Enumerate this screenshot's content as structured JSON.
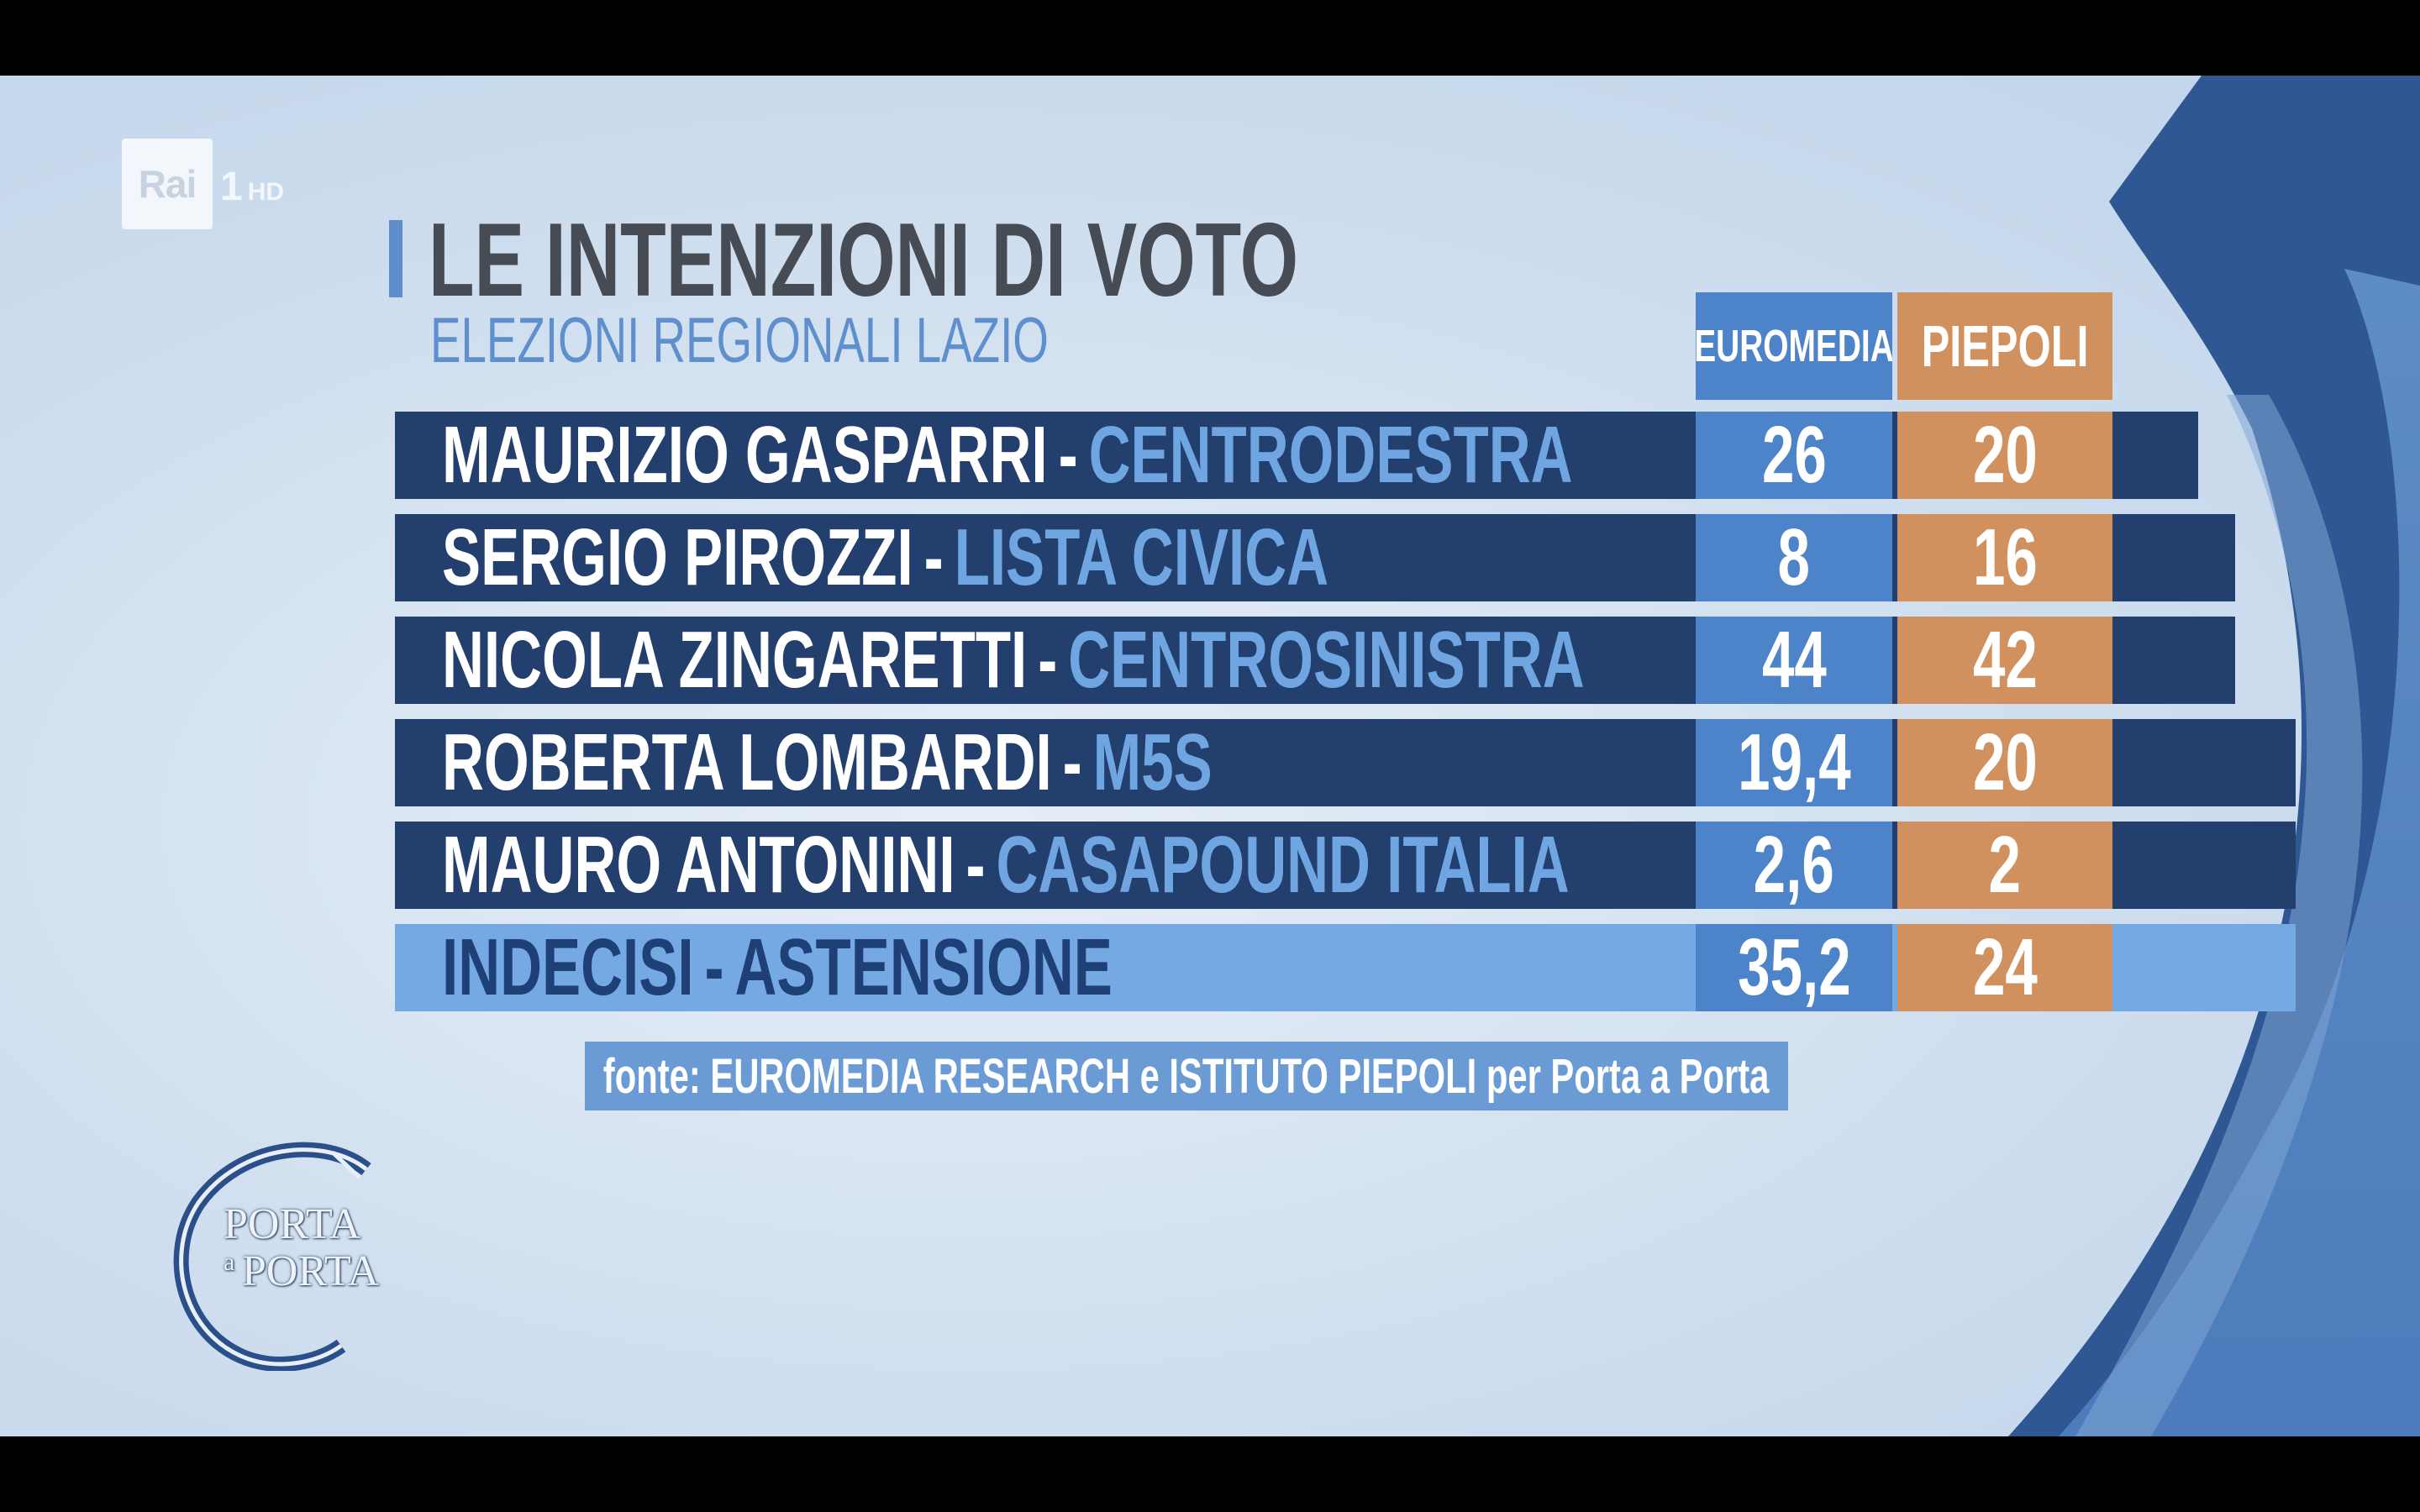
{
  "broadcaster": {
    "logo": "Rai",
    "channel": "1",
    "quality": "HD"
  },
  "title": "LE INTENZIONI DI VOTO",
  "subtitle": "ELEZIONI REGIONALI LAZIO",
  "source": "fonte: EUROMEDIA RESEARCH e ISTITUTO PIEPOLI per Porta a Porta",
  "show_logo": {
    "line1": "PORTA",
    "small": "a",
    "line2": "PORTA"
  },
  "colors": {
    "row_dark": "#233f6e",
    "row_highlight": "#74a9e3",
    "party_text": "#6fa6e2",
    "euromedia": "#4d83c8",
    "piepoli": "#d0915e",
    "title_text": "#474b53",
    "subtitle_text": "#5f8fcd"
  },
  "chart_data": {
    "type": "table",
    "title": "LE INTENZIONI DI VOTO",
    "subtitle": "ELEZIONI REGIONALI LAZIO",
    "columns": [
      "EUROMEDIA",
      "PIEPOLI"
    ],
    "rows": [
      {
        "candidate": "MAURIZIO GASPARRI",
        "party": "CENTRODESTRA",
        "euromedia": "26",
        "piepoli": "20",
        "highlight": false
      },
      {
        "candidate": "SERGIO PIROZZI",
        "party": "LISTA CIVICA",
        "euromedia": "8",
        "piepoli": "16",
        "highlight": false
      },
      {
        "candidate": "NICOLA ZINGARETTI",
        "party": "CENTROSINISTRA",
        "euromedia": "44",
        "piepoli": "42",
        "highlight": false
      },
      {
        "candidate": "ROBERTA LOMBARDI",
        "party": "M5S",
        "euromedia": "19,4",
        "piepoli": "20",
        "highlight": false
      },
      {
        "candidate": "MAURO ANTONINI",
        "party": "CASAPOUND ITALIA",
        "euromedia": "2,6",
        "piepoli": "2",
        "highlight": false
      },
      {
        "candidate": "INDECISI",
        "party": "ASTENSIONE",
        "euromedia": "35,2",
        "piepoli": "24",
        "highlight": true
      }
    ],
    "source": "fonte: EUROMEDIA RESEARCH e ISTITUTO PIEPOLI per Porta a Porta"
  }
}
